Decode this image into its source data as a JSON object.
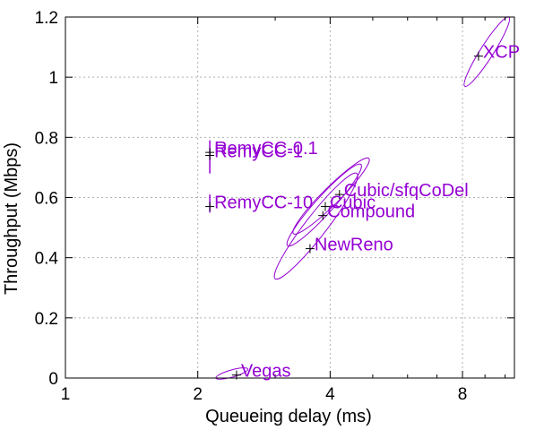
{
  "chart_data": {
    "type": "scatter",
    "title": "",
    "xlabel": "Queueing delay (ms)",
    "ylabel": "Throughput (Mbps)",
    "xscale": "log2",
    "xlim": [
      1,
      10.5
    ],
    "ylim": [
      0,
      1.2
    ],
    "xticks": [
      1,
      2,
      4,
      8
    ],
    "xtick_labels": [
      "1",
      "2",
      "4",
      "8"
    ],
    "yticks": [
      0,
      0.2,
      0.4,
      0.6,
      0.8,
      1.0,
      1.2
    ],
    "ytick_labels": [
      "0",
      "0.2",
      "0.4",
      "0.6",
      "0.8",
      "1",
      "1.2"
    ],
    "grid": true,
    "series_color": "#9400d3",
    "marker_color": "#000000",
    "points": [
      {
        "name": "XCP",
        "x": 8.7,
        "y": 1.07,
        "ellipse": {
          "x_min": 8.1,
          "x_max": 10.2,
          "y_min": 0.97,
          "y_max": 1.2
        }
      },
      {
        "name": "RemyCC-0.1",
        "x": 2.13,
        "y": 0.75,
        "spread": [
          0.68,
          0.79
        ]
      },
      {
        "name": "RemyCC-1",
        "x": 2.13,
        "y": 0.74
      },
      {
        "name": "RemyCC-10",
        "x": 2.13,
        "y": 0.57,
        "spread": [
          0.55,
          0.61
        ]
      },
      {
        "name": "Cubic",
        "x": 3.9,
        "y": 0.57,
        "ellipse": {
          "x_min": 3.2,
          "x_max": 4.7,
          "y_min": 0.44,
          "y_max": 0.71
        }
      },
      {
        "name": "Cubic/sfqCoDel",
        "x": 4.2,
        "y": 0.61,
        "ellipse": {
          "x_min": 3.3,
          "x_max": 4.9,
          "y_min": 0.48,
          "y_max": 0.73
        }
      },
      {
        "name": "Compound",
        "x": 3.85,
        "y": 0.54,
        "ellipse": {
          "x_min": 3.0,
          "x_max": 4.6,
          "y_min": 0.33,
          "y_max": 0.68
        }
      },
      {
        "name": "NewReno",
        "x": 3.6,
        "y": 0.43
      },
      {
        "name": "Vegas",
        "x": 2.45,
        "y": 0.01,
        "ellipse": {
          "x_min": 2.2,
          "x_max": 2.6,
          "y_min": 0.0,
          "y_max": 0.03
        }
      }
    ]
  }
}
